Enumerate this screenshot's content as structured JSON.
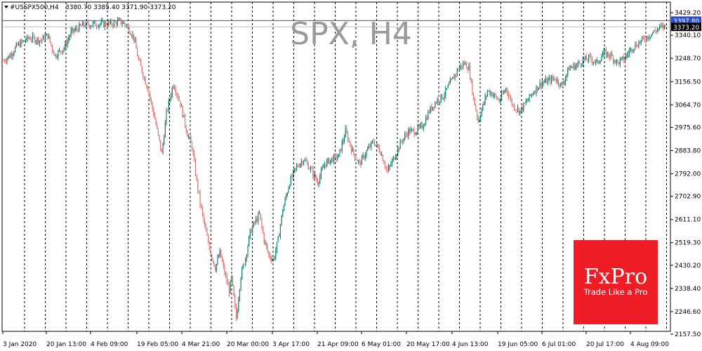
{
  "chart_data": {
    "type": "candlestick",
    "symbol_line": "#USSPX500,H4",
    "ohlc_line": "3380.70 3385.40 3371.90 3373.20",
    "title": "SPX, H4",
    "ylim": [
      2157.5,
      3435.0
    ],
    "y_ticks": [
      "3429.20",
      "3340.10",
      "3248.70",
      "3156.50",
      "3064.70",
      "2975.60",
      "2883.80",
      "2792.00",
      "2702.90",
      "2611.10",
      "2519.30",
      "2430.20",
      "2338.40",
      "2246.60",
      "2157.50"
    ],
    "x_labels": [
      "3 Jan 2020",
      "20 Jan 13:00",
      "4 Feb 09:00",
      "19 Feb 05:00",
      "4 Mar 21:00",
      "20 Mar 00:00",
      "3 Apr 17:00",
      "21 Apr 09:00",
      "6 May 01:00",
      "20 May 17:00",
      "4 Jun 13:00",
      "19 Jun 05:00",
      "6 Jul 01:00",
      "20 Jul 17:00",
      "4 Aug 09:00"
    ],
    "price_tags": [
      {
        "label": "3397.80",
        "value": 3397.8,
        "color": "#2e4fc4"
      },
      {
        "label": "3373.20",
        "value": 3373.2,
        "color": "#000000"
      }
    ],
    "series": {
      "anchors": [
        [
          0,
          3240
        ],
        [
          5,
          3258
        ],
        [
          12,
          3300
        ],
        [
          22,
          3330
        ],
        [
          32,
          3320
        ],
        [
          38,
          3340
        ],
        [
          44,
          3260
        ],
        [
          52,
          3290
        ],
        [
          58,
          3350
        ],
        [
          68,
          3380
        ],
        [
          80,
          3385
        ],
        [
          92,
          3385
        ],
        [
          100,
          3395
        ],
        [
          106,
          3380
        ],
        [
          112,
          3330
        ],
        [
          116,
          3240
        ],
        [
          124,
          3130
        ],
        [
          130,
          3010
        ],
        [
          136,
          2870
        ],
        [
          140,
          3030
        ],
        [
          146,
          3150
        ],
        [
          152,
          3070
        ],
        [
          158,
          2950
        ],
        [
          162,
          2900
        ],
        [
          166,
          2760
        ],
        [
          170,
          2650
        ],
        [
          174,
          2560
        ],
        [
          178,
          2480
        ],
        [
          182,
          2420
        ],
        [
          186,
          2480
        ],
        [
          190,
          2400
        ],
        [
          194,
          2330
        ],
        [
          196,
          2380
        ],
        [
          200,
          2220
        ],
        [
          204,
          2390
        ],
        [
          208,
          2460
        ],
        [
          212,
          2560
        ],
        [
          216,
          2600
        ],
        [
          220,
          2630
        ],
        [
          224,
          2530
        ],
        [
          228,
          2470
        ],
        [
          232,
          2450
        ],
        [
          236,
          2530
        ],
        [
          240,
          2650
        ],
        [
          246,
          2760
        ],
        [
          252,
          2820
        ],
        [
          258,
          2850
        ],
        [
          264,
          2810
        ],
        [
          270,
          2760
        ],
        [
          276,
          2830
        ],
        [
          282,
          2850
        ],
        [
          288,
          2860
        ],
        [
          294,
          2960
        ],
        [
          300,
          2880
        ],
        [
          306,
          2830
        ],
        [
          312,
          2880
        ],
        [
          318,
          2920
        ],
        [
          324,
          2880
        ],
        [
          330,
          2800
        ],
        [
          336,
          2860
        ],
        [
          342,
          2920
        ],
        [
          348,
          2960
        ],
        [
          354,
          2960
        ],
        [
          360,
          2980
        ],
        [
          366,
          3040
        ],
        [
          372,
          3080
        ],
        [
          378,
          3100
        ],
        [
          384,
          3150
        ],
        [
          390,
          3200
        ],
        [
          396,
          3230
        ],
        [
          400,
          3210
        ],
        [
          404,
          3090
        ],
        [
          408,
          3000
        ],
        [
          412,
          3060
        ],
        [
          416,
          3120
        ],
        [
          420,
          3110
        ],
        [
          426,
          3080
        ],
        [
          432,
          3130
        ],
        [
          438,
          3060
        ],
        [
          444,
          3040
        ],
        [
          450,
          3080
        ],
        [
          456,
          3120
        ],
        [
          462,
          3150
        ],
        [
          468,
          3160
        ],
        [
          474,
          3170
        ],
        [
          480,
          3140
        ],
        [
          486,
          3210
        ],
        [
          492,
          3220
        ],
        [
          498,
          3240
        ],
        [
          504,
          3250
        ],
        [
          510,
          3230
        ],
        [
          516,
          3270
        ],
        [
          522,
          3260
        ],
        [
          528,
          3230
        ],
        [
          534,
          3250
        ],
        [
          540,
          3290
        ],
        [
          546,
          3310
        ],
        [
          552,
          3330
        ],
        [
          558,
          3350
        ],
        [
          564,
          3370
        ],
        [
          569,
          3375
        ]
      ]
    }
  },
  "branding": {
    "logo_text": "FxPro",
    "tagline": "Trade Like a Pro",
    "logo_color": "#ee1c25"
  },
  "colors": {
    "bull": "#0e7c6b",
    "bear": "#e0706e",
    "grid": "#000000",
    "baseline": "#bdbdbd"
  }
}
